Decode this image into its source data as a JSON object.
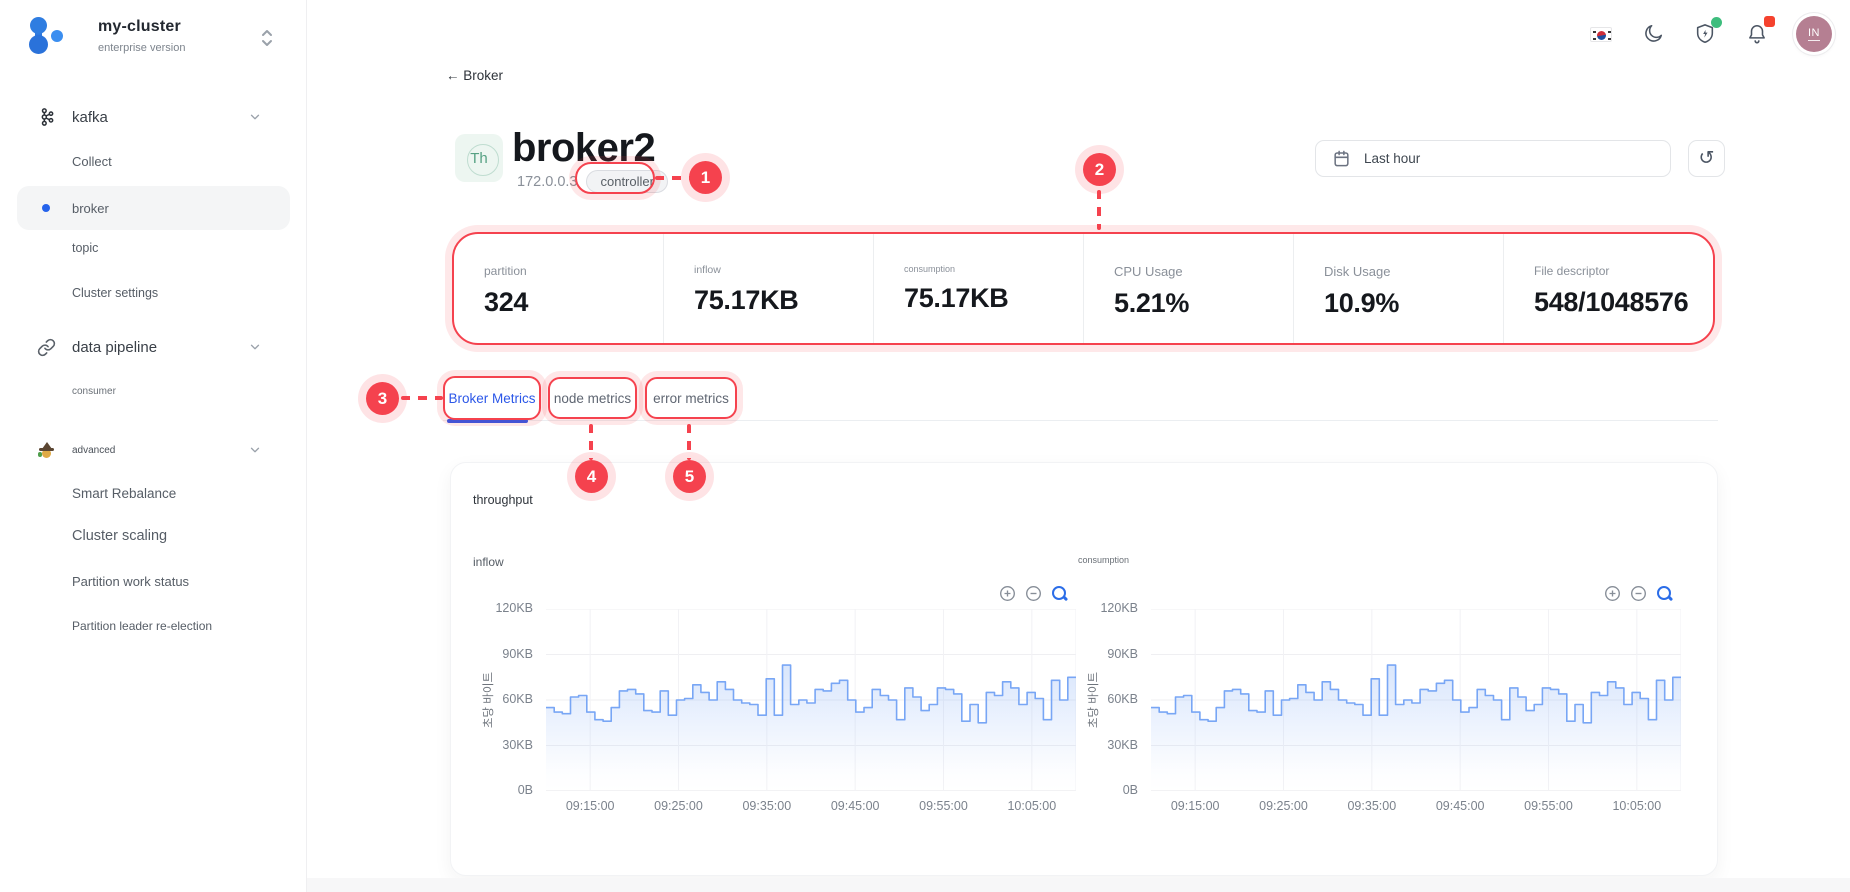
{
  "app": {
    "cluster_name": "my-cluster",
    "cluster_subtitle": "enterprise version"
  },
  "topbar": {
    "avatar_initials": "IN"
  },
  "sidebar": {
    "groups": [
      {
        "label": "kafka",
        "items": [
          {
            "label": "Collect"
          },
          {
            "label": "broker",
            "active": true
          },
          {
            "label": "topic"
          },
          {
            "label": "Cluster settings"
          }
        ]
      },
      {
        "label": "data pipeline",
        "items": [
          {
            "label": "consumer"
          }
        ]
      },
      {
        "label": "advanced",
        "items": [
          {
            "label": "Smart Rebalance"
          },
          {
            "label": "Cluster scaling"
          },
          {
            "label": "Partition work status"
          },
          {
            "label": "Partition leader re-election"
          }
        ]
      }
    ]
  },
  "page": {
    "back_link": "← Broker",
    "broker_badge": "Th",
    "title": "broker2",
    "ip": "172.0.0.3",
    "role_tag": "controller",
    "time_range": "Last hour"
  },
  "stats": [
    {
      "label": "partition",
      "value": "324"
    },
    {
      "label": "inflow",
      "value": "75.17KB"
    },
    {
      "label": "consumption",
      "value": "75.17KB"
    },
    {
      "label": "CPU Usage",
      "value": "5.21%"
    },
    {
      "label": "Disk Usage",
      "value": "10.9%"
    },
    {
      "label": "File descriptor",
      "value": "548/1048576"
    }
  ],
  "tabs": [
    {
      "label": "Broker Metrics",
      "active": true
    },
    {
      "label": "node metrics",
      "active": false
    },
    {
      "label": "error metrics",
      "active": false
    }
  ],
  "metrics_section": {
    "title": "throughput"
  },
  "annotations": [
    "1",
    "2",
    "3",
    "4",
    "5"
  ],
  "colors": {
    "annotation_red": "#f5424e",
    "active_tab_blue": "#2b57e8",
    "chart_line": "#78a6f5",
    "brand_blue": "#2f7de1",
    "badge_green_bg": "#edf6f1",
    "badge_green_text": "#56a183",
    "avatar_bg": "#b57f92",
    "notification_green": "#3dbd7d",
    "notification_red": "#f5422e"
  },
  "chart_data": [
    {
      "type": "line",
      "style": "step-area",
      "title": "inflow",
      "ylabel": "초당 바이트",
      "unit": "KB/s",
      "ylim": [
        0,
        120
      ],
      "yticks": [
        "0B",
        "30KB",
        "60KB",
        "90KB",
        "120KB"
      ],
      "x_ticks": [
        "09:15:00",
        "09:25:00",
        "09:35:00",
        "09:45:00",
        "09:55:00",
        "10:05:00"
      ],
      "x_range": [
        "09:10:00",
        "10:10:00"
      ],
      "grid": true,
      "values": [
        55,
        52,
        51,
        62,
        63,
        52,
        47,
        46,
        55,
        66,
        67,
        64,
        53,
        52,
        66,
        50,
        60,
        61,
        70,
        65,
        60,
        72,
        67,
        60,
        58,
        57,
        50,
        74,
        50,
        83,
        57,
        60,
        58,
        67,
        66,
        71,
        73,
        60,
        52,
        55,
        67,
        63,
        60,
        47,
        68,
        62,
        53,
        57,
        68,
        67,
        64,
        46,
        57,
        45,
        65,
        63,
        72,
        68,
        57,
        65,
        61,
        47,
        73,
        60,
        75
      ]
    },
    {
      "type": "line",
      "style": "step-area",
      "title": "consumption",
      "ylabel": "초당 바이트",
      "unit": "KB/s",
      "ylim": [
        0,
        120
      ],
      "yticks": [
        "0B",
        "30KB",
        "60KB",
        "90KB",
        "120KB"
      ],
      "x_ticks": [
        "09:15:00",
        "09:25:00",
        "09:35:00",
        "09:45:00",
        "09:55:00",
        "10:05:00"
      ],
      "x_range": [
        "09:10:00",
        "10:10:00"
      ],
      "grid": true,
      "values": [
        55,
        52,
        51,
        62,
        63,
        52,
        47,
        46,
        55,
        66,
        67,
        64,
        53,
        52,
        66,
        50,
        60,
        61,
        70,
        65,
        60,
        72,
        67,
        60,
        58,
        57,
        50,
        74,
        50,
        83,
        57,
        60,
        58,
        67,
        66,
        71,
        73,
        60,
        52,
        55,
        67,
        63,
        60,
        47,
        68,
        62,
        53,
        57,
        68,
        67,
        64,
        46,
        57,
        45,
        65,
        63,
        72,
        68,
        57,
        65,
        61,
        47,
        73,
        60,
        75
      ]
    }
  ]
}
